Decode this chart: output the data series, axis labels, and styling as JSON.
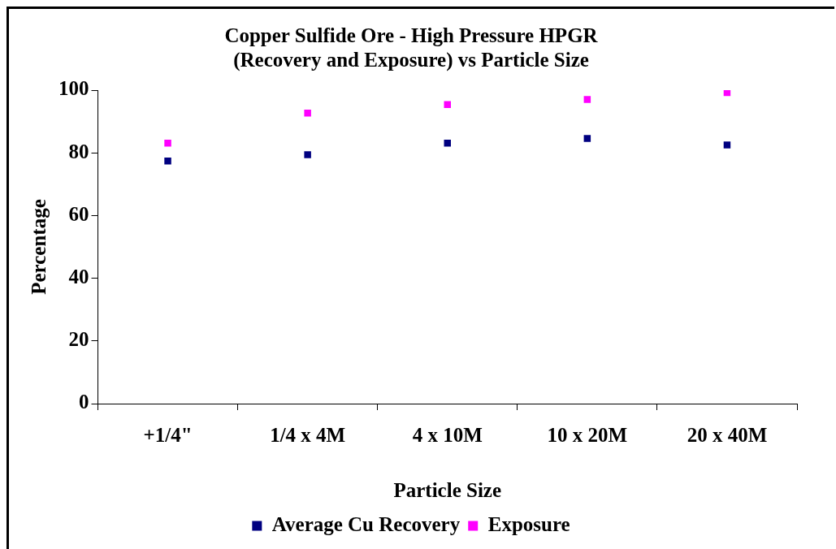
{
  "chart_data": {
    "type": "scatter",
    "title": [
      "Copper Sulfide Ore - High Pressure HPGR",
      "(Recovery and Exposure) vs Particle Size"
    ],
    "xlabel": "Particle Size",
    "ylabel": "Percentage",
    "categories": [
      "+1/4\"",
      "1/4 x 4M",
      "4 x 10M",
      "10 x 20M",
      "20 x 40M"
    ],
    "series": [
      {
        "name": "Average Cu Recovery",
        "color": "#000080",
        "values": [
          77.4,
          79.4,
          83.1,
          84.6,
          82.5
        ]
      },
      {
        "name": "Exposure",
        "color": "#ff00ff",
        "values": [
          83.1,
          92.7,
          95.4,
          97.0,
          99.2
        ]
      }
    ],
    "ylim": [
      0,
      100
    ],
    "yticks": [
      0,
      20,
      40,
      60,
      80,
      100
    ],
    "grid": false,
    "legend": "bottom",
    "marker": "square"
  }
}
